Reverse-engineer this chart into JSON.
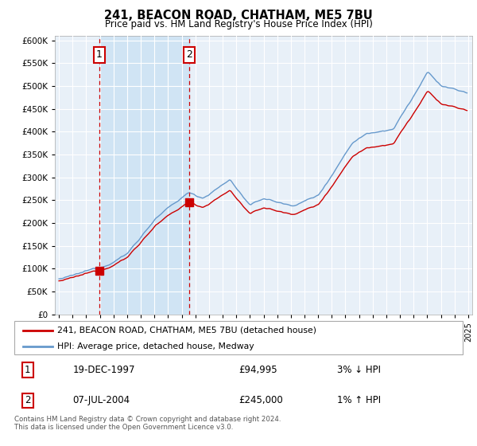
{
  "title": "241, BEACON ROAD, CHATHAM, ME5 7BU",
  "subtitle": "Price paid vs. HM Land Registry's House Price Index (HPI)",
  "ylabel_ticks": [
    0,
    50000,
    100000,
    150000,
    200000,
    250000,
    300000,
    350000,
    400000,
    450000,
    500000,
    550000,
    600000
  ],
  "ylim": [
    0,
    610000
  ],
  "xlim_start": 1994.7,
  "xlim_end": 2025.3,
  "sale1_date": 1997.97,
  "sale1_price": 94995,
  "sale1_label": "1",
  "sale2_date": 2004.54,
  "sale2_price": 245000,
  "sale2_label": "2",
  "legend_line1": "241, BEACON ROAD, CHATHAM, ME5 7BU (detached house)",
  "legend_line2": "HPI: Average price, detached house, Medway",
  "table_row1": [
    "1",
    "19-DEC-1997",
    "£94,995",
    "3% ↓ HPI"
  ],
  "table_row2": [
    "2",
    "07-JUL-2004",
    "£245,000",
    "1% ↑ HPI"
  ],
  "footnote": "Contains HM Land Registry data © Crown copyright and database right 2024.\nThis data is licensed under the Open Government Licence v3.0.",
  "line_color_red": "#cc0000",
  "line_color_blue": "#6699cc",
  "bg_color": "#e8f0f8",
  "shade_color": "#d0e4f4",
  "grid_color": "#ffffff",
  "marker_color_red": "#cc0000"
}
